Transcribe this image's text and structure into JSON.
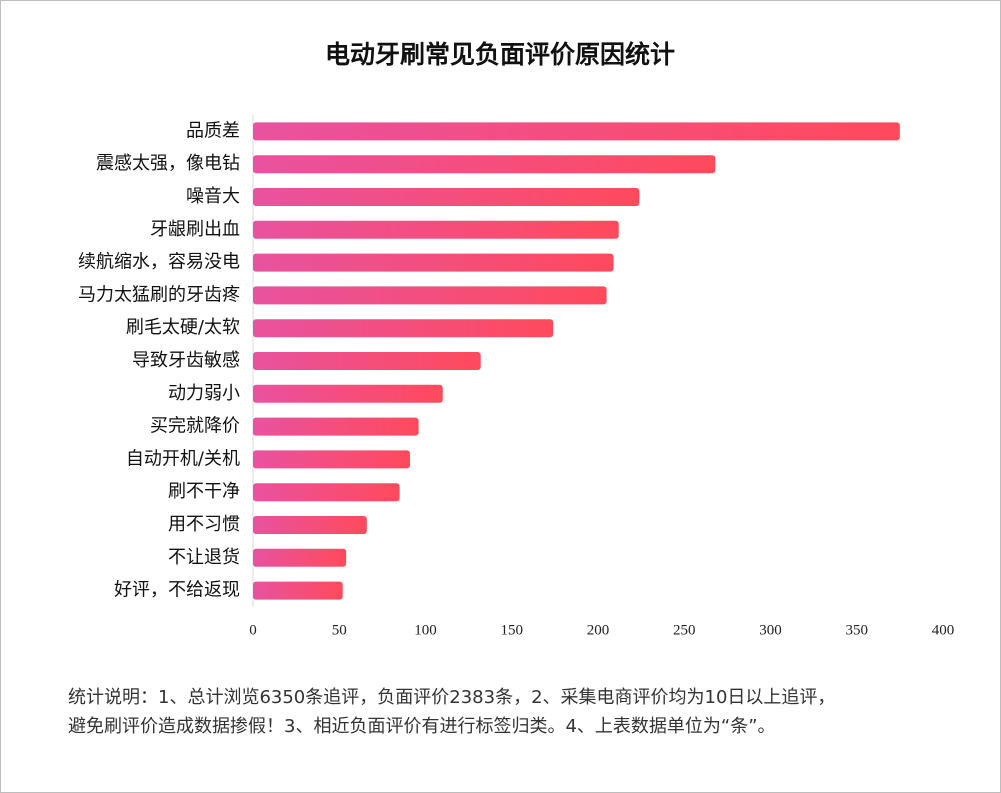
{
  "chart_data": {
    "type": "hbar",
    "title": "电动牙刷常见负面评价原因统计",
    "categories": [
      "品质差",
      "震感太强，像电钻",
      "噪音大",
      "牙龈刷出血",
      "续航缩水，容易没电",
      "马力太猛刷的牙齿疼",
      "刷毛太硬/太软",
      "导致牙齿敏感",
      "动力弱小",
      "买完就降价",
      "自动开机/关机",
      "刷不干净",
      "用不习惯",
      "不让退货",
      "好评，不给返现"
    ],
    "values": [
      375,
      268,
      224,
      212,
      209,
      205,
      174,
      132,
      110,
      96,
      91,
      85,
      66,
      54,
      52
    ],
    "color": [
      "#e8529f",
      "#ff4a5c"
    ],
    "xlim": [
      0,
      400
    ],
    "xticks": [
      0,
      50,
      100,
      150,
      200,
      250,
      300,
      350,
      400
    ],
    "notes": [
      "统计说明：1、总计浏览6350条追评，负面评价2383条，2、采集电商评价均为10日以上追评，",
      "避免刷评价造成数据掺假！3、相近负面评价有进行标签归类。4、上表数据单位为“条”。"
    ]
  }
}
